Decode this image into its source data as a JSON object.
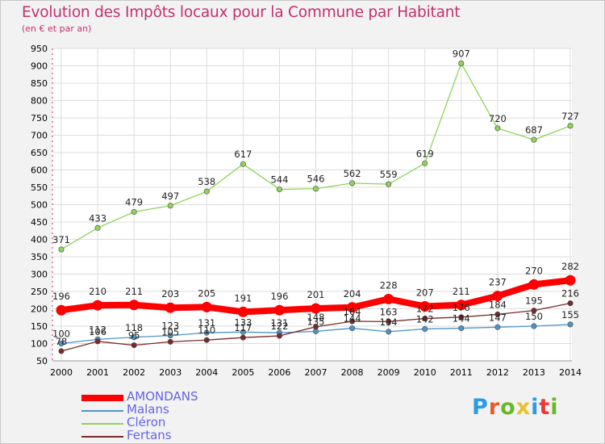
{
  "title": "Evolution des Impôts locaux pour la Commune par Habitant",
  "subtitle": "(en € et par an)",
  "logo": {
    "text": "Proxiti",
    "colors": [
      "#2a9be8",
      "#e85a2a",
      "#6ab82a",
      "#e8c22a",
      "#2a9be8",
      "#e83a3a",
      "#6ab82a"
    ]
  },
  "chart_data": {
    "type": "line",
    "x": [
      2000,
      2001,
      2002,
      2003,
      2004,
      2005,
      2006,
      2007,
      2008,
      2009,
      2010,
      2011,
      2012,
      2013,
      2014
    ],
    "ylim": [
      50,
      950
    ],
    "yticks": [
      50,
      100,
      150,
      200,
      250,
      300,
      350,
      400,
      450,
      500,
      550,
      600,
      650,
      700,
      750,
      800,
      850,
      900,
      950
    ],
    "grid": true,
    "legend_position": "bottom-left",
    "series": [
      {
        "name": "AMONDANS",
        "color": "#ff0000",
        "values": [
          196,
          210,
          211,
          203,
          205,
          191,
          196,
          201,
          204,
          228,
          207,
          211,
          237,
          270,
          282
        ]
      },
      {
        "name": "Malans",
        "color": "#4f94c8",
        "values": [
          100,
          112,
          118,
          123,
          131,
          133,
          131,
          135,
          144,
          134,
          142,
          144,
          147,
          150,
          155
        ]
      },
      {
        "name": "Cléron",
        "color": "#8ed45a",
        "values": [
          371,
          433,
          479,
          497,
          538,
          617,
          544,
          546,
          562,
          559,
          619,
          907,
          720,
          687,
          727
        ]
      },
      {
        "name": "Fertans",
        "color": "#7a2a2a",
        "values": [
          78,
          106,
          95,
          105,
          110,
          117,
          122,
          148,
          164,
          163,
          172,
          176,
          184,
          195,
          216
        ]
      }
    ]
  }
}
